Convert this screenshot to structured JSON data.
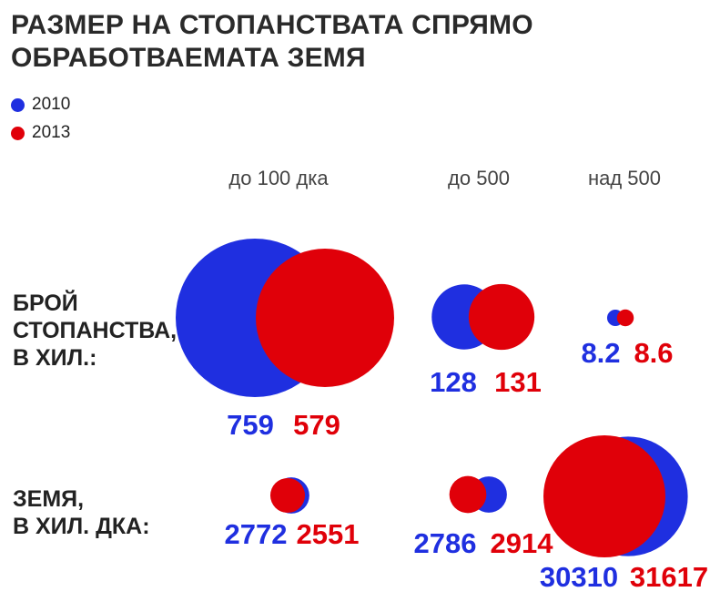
{
  "title_line1": "РАЗМЕР НА СТОПАНСТВАТА СПРЯМО",
  "title_line2": "ОБРАБОТВАЕМАТА ЗЕМЯ",
  "legend": [
    {
      "label": "2010",
      "color": "#1f2fe0"
    },
    {
      "label": "2013",
      "color": "#e00009"
    }
  ],
  "columns": [
    "до 100 дка",
    "до 500",
    "над 500"
  ],
  "rows": [
    {
      "label_lines": [
        "БРОЙ",
        "СТОПАНСТВА,",
        "В ХИЛ.:"
      ]
    },
    {
      "label_lines": [
        "ЗЕМЯ,",
        "В  ХИЛ. ДКА:"
      ]
    }
  ],
  "chart_data": {
    "type": "bubble",
    "title": "РАЗМЕР НА СТОПАНСТВАТА СПРЯМО ОБРАБОТВАЕМАТА ЗЕМЯ",
    "categories": [
      "до 100 дка",
      "до 500",
      "над 500"
    ],
    "series": [
      {
        "name": "Брой стопанства, в хил.",
        "values_2010": [
          759,
          128,
          8.2
        ],
        "values_2013": [
          579,
          131,
          8.6
        ],
        "labels_2010": [
          "759",
          "128",
          "8.2"
        ],
        "labels_2013": [
          "579",
          "131",
          "8.6"
        ]
      },
      {
        "name": "Земя, в хил. дка",
        "values_2010": [
          2772,
          2786,
          30310
        ],
        "values_2013": [
          2551,
          2914,
          31617
        ],
        "labels_2010": [
          "2772",
          "2786",
          "30310"
        ],
        "labels_2013": [
          "2551",
          "2914",
          "31617"
        ]
      }
    ],
    "colors": {
      "2010": "#1f2fe0",
      "2013": "#e00009"
    }
  }
}
